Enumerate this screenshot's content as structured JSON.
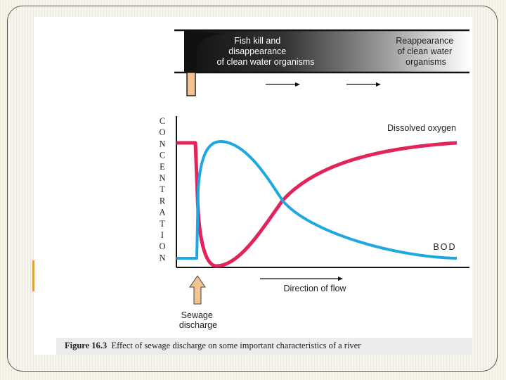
{
  "banner": {
    "left_text": [
      "Fish kill and",
      "disappearance",
      "of clean water organisms"
    ],
    "right_text": [
      "Reappearance",
      "of clean water",
      "organisms"
    ]
  },
  "axis": {
    "y_label_letters": [
      "C",
      "O",
      "N",
      "C",
      "E",
      "N",
      "T",
      "R",
      "A",
      "T",
      "I",
      "O",
      "N"
    ],
    "x_label": "Direction of flow"
  },
  "curves": {
    "oxygen_label": "Dissolved oxygen",
    "bod_label": "BOD",
    "oxygen_color": "#e2245a",
    "bod_color": "#1ea7e1"
  },
  "sewage_label": [
    "Sewage",
    "discharge"
  ],
  "caption": {
    "figure_label": "Figure 16.3",
    "text": "Effect of sewage discharge on some important characteristics of a river"
  },
  "icons": {
    "arrow_up": "up-arrow-icon",
    "arrow_right": "right-arrow-icon"
  }
}
